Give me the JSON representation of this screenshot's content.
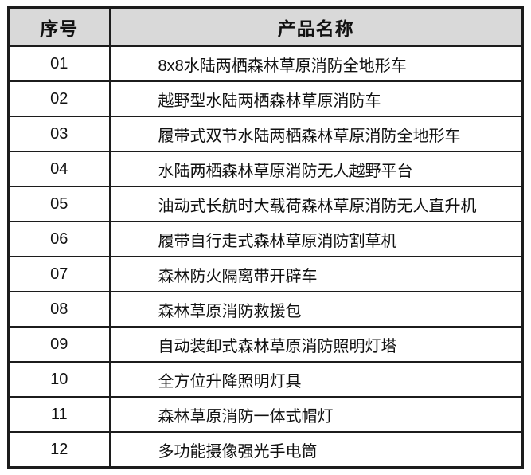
{
  "page": {
    "background": "#ffffff"
  },
  "table": {
    "columns": [
      {
        "label": "序号"
      },
      {
        "label": "产品名称"
      }
    ],
    "rows": [
      {
        "no": "01",
        "name": "8x8水陆两栖森林草原消防全地形车"
      },
      {
        "no": "02",
        "name": "越野型水陆两栖森林草原消防车"
      },
      {
        "no": "03",
        "name": "履带式双节水陆两栖森林草原消防全地形车"
      },
      {
        "no": "04",
        "name": "水陆两栖森林草原消防无人越野平台"
      },
      {
        "no": "05",
        "name": "油动式长航时大载荷森林草原消防无人直升机"
      },
      {
        "no": "06",
        "name": "履带自行走式森林草原消防割草机"
      },
      {
        "no": "07",
        "name": "森林防火隔离带开辟车"
      },
      {
        "no": "08",
        "name": "森林草原消防救援包"
      },
      {
        "no": "09",
        "name": "自动装卸式森林草原消防照明灯塔"
      },
      {
        "no": "10",
        "name": "全方位升降照明灯具"
      },
      {
        "no": "11",
        "name": "森林草原消防一体式帽灯"
      },
      {
        "no": "12",
        "name": "多功能摄像强光手电筒"
      }
    ],
    "style": {
      "header_bg": "#d9d9d9",
      "border_color": "#1c1c1c",
      "text_color": "#111111"
    }
  },
  "chart_data": {
    "type": "table",
    "columns": [
      "序号",
      "产品名称"
    ],
    "rows": [
      [
        "01",
        "8x8水陆两栖森林草原消防全地形车"
      ],
      [
        "02",
        "越野型水陆两栖森林草原消防车"
      ],
      [
        "03",
        "履带式双节水陆两栖森林草原消防全地形车"
      ],
      [
        "04",
        "水陆两栖森林草原消防无人越野平台"
      ],
      [
        "05",
        "油动式长航时大载荷森林草原消防无人直升机"
      ],
      [
        "06",
        "履带自行走式森林草原消防割草机"
      ],
      [
        "07",
        "森林防火隔离带开辟车"
      ],
      [
        "08",
        "森林草原消防救援包"
      ],
      [
        "09",
        "自动装卸式森林草原消防照明灯塔"
      ],
      [
        "10",
        "全方位升降照明灯具"
      ],
      [
        "11",
        "森林草原消防一体式帽灯"
      ],
      [
        "12",
        "多功能摄像强光手电筒"
      ]
    ]
  }
}
